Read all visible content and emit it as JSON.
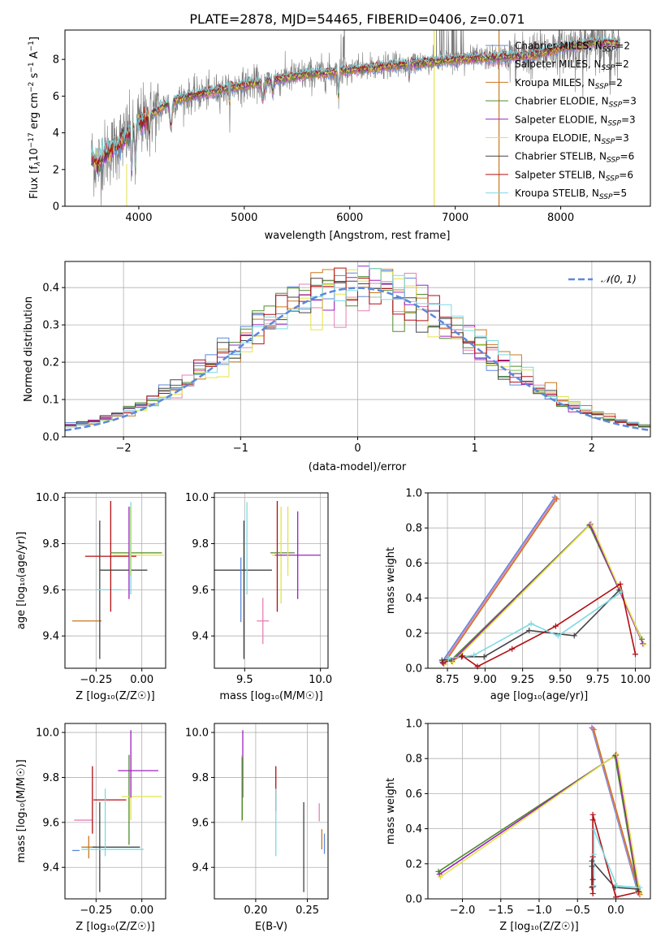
{
  "colors": {
    "Chabrier MILES": "#5b88db",
    "Salpeter MILES": "#e57fb6",
    "Kroupa MILES": "#c9771f",
    "Chabrier ELODIE": "#4e8c2a",
    "Salpeter ELODIE": "#9b22c2",
    "Kroupa ELODIE": "#e3e349",
    "Chabrier STELIB": "#444444",
    "Salpeter STELIB": "#b30d12",
    "Kroupa STELIB": "#7dd9e1",
    "spectrum": "#7a7a7a",
    "gaussian": "#5b88db",
    "grid": "#b0b0b0"
  },
  "chart_data": [
    {
      "id": "spectrum",
      "type": "line",
      "title": "PLATE=2878, MJD=54465, FIBERID=0406, z=0.071",
      "xlabel": "wavelength [Angstrom, rest frame]",
      "ylabel_parts": [
        "Flux [f",
        "λ",
        "10",
        "−17",
        " erg cm",
        "−2",
        " s",
        "−1",
        " A",
        "−1",
        "]"
      ],
      "xlim": [
        3300,
        8850
      ],
      "ylim": [
        0,
        9.6
      ],
      "xticks": [
        4000,
        5000,
        6000,
        7000,
        8000
      ],
      "yticks": [
        0,
        2,
        4,
        6,
        8
      ],
      "continuum": {
        "x": [
          3550,
          3600,
          3650,
          3700,
          3800,
          3900,
          4000,
          4100,
          4200,
          4300,
          4500,
          5000,
          5500,
          6000,
          6500,
          7000,
          7400,
          7700,
          8000,
          8300,
          8500
        ],
        "y": [
          2.7,
          2.3,
          2.6,
          2.9,
          3.4,
          3.9,
          4.5,
          4.9,
          5.3,
          5.7,
          6.0,
          6.6,
          7.1,
          7.4,
          7.7,
          8.0,
          8.1,
          8.2,
          8.6,
          8.9,
          8.9
        ]
      },
      "legend": [
        {
          "name": "Chabrier MILES",
          "nssp": "2"
        },
        {
          "name": "Salpeter MILES",
          "nssp": "2"
        },
        {
          "name": "Kroupa MILES",
          "nssp": "2"
        },
        {
          "name": "Chabrier ELODIE",
          "nssp": "3"
        },
        {
          "name": "Salpeter ELODIE",
          "nssp": "3"
        },
        {
          "name": "Kroupa ELODIE",
          "nssp": "3"
        },
        {
          "name": "Chabrier STELIB",
          "nssp": "6"
        },
        {
          "name": "Salpeter STELIB",
          "nssp": "6"
        },
        {
          "name": "Kroupa STELIB",
          "nssp": "5"
        }
      ],
      "nssp_label": "N",
      "nssp_sub": "SSP"
    },
    {
      "id": "residuals",
      "type": "histogram",
      "xlabel": "(data-model)/error",
      "ylabel": "Normed distribution",
      "xlim": [
        -2.5,
        2.5
      ],
      "ylim": [
        0,
        0.47
      ],
      "xticks": [
        -2,
        -1,
        0,
        1,
        2
      ],
      "yticks": [
        0.0,
        0.1,
        0.2,
        0.3,
        0.4
      ],
      "bin_width": 0.1,
      "legend": "𝒩(0, 1)"
    },
    {
      "id": "age-vs-Z",
      "type": "errorbar",
      "xlabel": "Z [log₁₀(Z/Z☉)]",
      "ylabel": "age  [log₁₀(age/yr)]",
      "xlim": [
        -0.42,
        0.13
      ],
      "ylim": [
        9.26,
        10.02
      ],
      "xticks": [
        -0.25,
        0.0
      ],
      "xticklabels": [
        "−0.25",
        "0.00"
      ],
      "yticks": [
        9.4,
        9.6,
        9.8,
        10.0
      ],
      "points": [
        {
          "series": "Kroupa MILES",
          "x": -0.3,
          "xerr": 0.08,
          "y": 9.465,
          "yerr": 0.0
        },
        {
          "series": "Salpeter MILES",
          "x": -0.27,
          "xerr": 0.0,
          "y": 9.465,
          "yerr": 0.0
        },
        {
          "series": "Chabrier STELIB",
          "x": -0.23,
          "xerr": 0.0,
          "y": 9.6,
          "yerr": 0.3
        },
        {
          "series": "Kroupa STELIB",
          "x": -0.18,
          "xerr": 0.07,
          "y": 9.6,
          "yerr": 0.0
        },
        {
          "series": "Salpeter STELIB",
          "x": -0.17,
          "xerr": 0.14,
          "y": 9.745,
          "yerr": 0.24
        },
        {
          "series": "Chabrier STELIB",
          "x": -0.1,
          "xerr": 0.13,
          "y": 9.685,
          "yerr": 0.0
        },
        {
          "series": "Chabrier ELODIE",
          "x": -0.03,
          "xerr": 0.14,
          "y": 9.76,
          "yerr": 0.0
        },
        {
          "series": "Kroupa ELODIE",
          "x": -0.02,
          "xerr": 0.14,
          "y": 9.75,
          "yerr": 0.0
        },
        {
          "series": "Salpeter ELODIE",
          "x": -0.07,
          "xerr": 0.0,
          "y": 9.76,
          "yerr": 0.2
        },
        {
          "series": "Kroupa STELIB",
          "x": -0.06,
          "xerr": 0.0,
          "y": 9.78,
          "yerr": 0.2
        },
        {
          "series": "Kroupa ELODIE",
          "x": -0.065,
          "xerr": 0.0,
          "y": 9.81,
          "yerr": 0.15
        }
      ]
    },
    {
      "id": "age-vs-mass",
      "type": "errorbar",
      "xlabel": "mass [log₁₀(M/M☉)]",
      "ylabel": "",
      "xlim": [
        9.3,
        10.05
      ],
      "ylim": [
        9.26,
        10.02
      ],
      "xticks": [
        9.5,
        10.0
      ],
      "xticklabels": [
        "9.5",
        "10.0"
      ],
      "yticks": [
        9.4,
        9.6,
        9.8,
        10.0
      ],
      "points": [
        {
          "series": "Chabrier STELIB",
          "x": 9.49,
          "xerr": 0.19,
          "y": 9.685,
          "yerr": 0.0
        },
        {
          "series": "Chabrier STELIB",
          "x": 9.495,
          "xerr": 0.0,
          "y": 9.6,
          "yerr": 0.3
        },
        {
          "series": "Chabrier MILES",
          "x": 9.475,
          "xerr": 0.0,
          "y": 9.6,
          "yerr": 0.14
        },
        {
          "series": "Kroupa STELIB",
          "x": 9.515,
          "xerr": 0.0,
          "y": 9.78,
          "yerr": 0.2
        },
        {
          "series": "Kroupa MILES",
          "x": 9.55,
          "xerr": 0.0,
          "y": 9.465,
          "yerr": 0.0
        },
        {
          "series": "Salpeter MILES",
          "x": 9.62,
          "xerr": 0.04,
          "y": 9.465,
          "yerr": 0.1
        },
        {
          "series": "Kroupa STELIB",
          "x": 9.66,
          "xerr": 0.0,
          "y": 9.6,
          "yerr": 0.0
        },
        {
          "series": "Salpeter STELIB",
          "x": 9.715,
          "xerr": 0.0,
          "y": 9.745,
          "yerr": 0.24
        },
        {
          "series": "Chabrier ELODIE",
          "x": 9.75,
          "xerr": 0.08,
          "y": 9.76,
          "yerr": 0.0
        },
        {
          "series": "Kroupa ELODIE",
          "x": 9.74,
          "xerr": 0.06,
          "y": 9.75,
          "yerr": 0.21
        },
        {
          "series": "Salpeter ELODIE",
          "x": 9.85,
          "xerr": 0.15,
          "y": 9.75,
          "yerr": 0.19
        },
        {
          "series": "Kroupa ELODIE",
          "x": 9.785,
          "xerr": 0.0,
          "y": 9.81,
          "yerr": 0.15
        }
      ]
    },
    {
      "id": "mass-vs-Z",
      "type": "errorbar",
      "xlabel": "Z [log₁₀(Z/Z☉)]",
      "ylabel": "mass [log₁₀(M/M☉)]",
      "xlim": [
        -0.42,
        0.13
      ],
      "ylim": [
        9.26,
        10.04
      ],
      "xticks": [
        -0.25,
        0.0
      ],
      "xticklabels": [
        "−0.25",
        "0.00"
      ],
      "yticks": [
        9.4,
        9.6,
        9.8,
        10.0
      ],
      "points": [
        {
          "series": "Chabrier MILES",
          "x": -0.36,
          "xerr": 0.02,
          "y": 9.475,
          "yerr": 0.0
        },
        {
          "series": "Kroupa MILES",
          "x": -0.29,
          "xerr": 0.04,
          "y": 9.49,
          "yerr": 0.05
        },
        {
          "series": "Salpeter MILES",
          "x": -0.32,
          "xerr": 0.05,
          "y": 9.61,
          "yerr": 0.0
        },
        {
          "series": "Salpeter STELIB",
          "x": -0.27,
          "xerr": 0.0,
          "y": 9.7,
          "yerr": 0.15
        },
        {
          "series": "Salpeter STELIB",
          "x": -0.175,
          "xerr": 0.09,
          "y": 9.7,
          "yerr": 0.0
        },
        {
          "series": "Chabrier STELIB",
          "x": -0.23,
          "xerr": 0.0,
          "y": 9.49,
          "yerr": 0.2
        },
        {
          "series": "Chabrier STELIB",
          "x": -0.14,
          "xerr": 0.13,
          "y": 9.49,
          "yerr": 0.0
        },
        {
          "series": "Kroupa STELIB",
          "x": -0.16,
          "xerr": 0.17,
          "y": 9.48,
          "yerr": 0.0
        },
        {
          "series": "Kroupa STELIB",
          "x": -0.2,
          "xerr": 0.0,
          "y": 9.6,
          "yerr": 0.15
        },
        {
          "series": "Chabrier ELODIE",
          "x": -0.07,
          "xerr": 0.0,
          "y": 9.7,
          "yerr": 0.2
        },
        {
          "series": "Kroupa ELODIE",
          "x": 0.0,
          "xerr": 0.11,
          "y": 9.715,
          "yerr": 0.0
        },
        {
          "series": "Kroupa ELODIE",
          "x": -0.06,
          "xerr": 0.0,
          "y": 9.76,
          "yerr": 0.15
        },
        {
          "series": "Salpeter ELODIE",
          "x": -0.02,
          "xerr": 0.11,
          "y": 9.83,
          "yerr": 0.0
        },
        {
          "series": "Salpeter ELODIE",
          "x": -0.06,
          "xerr": 0.0,
          "y": 9.86,
          "yerr": 0.15
        }
      ]
    },
    {
      "id": "mass-vs-EBV",
      "type": "errorbar",
      "xlabel": "E(B-V)",
      "ylabel": "",
      "xlim": [
        0.16,
        0.27
      ],
      "ylim": [
        9.26,
        10.04
      ],
      "xticks": [
        0.2,
        0.25
      ],
      "xticklabels": [
        "0.20",
        "0.25"
      ],
      "yticks": [
        9.4,
        9.6,
        9.8,
        10.0
      ],
      "points": [
        {
          "series": "Salpeter ELODIE",
          "x": 0.1875,
          "xerr": 0.0,
          "y": 9.86,
          "yerr": 0.15
        },
        {
          "series": "Kroupa ELODIE",
          "x": 0.1865,
          "xerr": 0.0,
          "y": 9.75,
          "yerr": 0.15
        },
        {
          "series": "Chabrier ELODIE",
          "x": 0.187,
          "xerr": 0.0,
          "y": 9.75,
          "yerr": 0.14
        },
        {
          "series": "Salpeter STELIB",
          "x": 0.2195,
          "xerr": 0.0,
          "y": 9.75,
          "yerr": 0.1
        },
        {
          "series": "Kroupa STELIB",
          "x": 0.2195,
          "xerr": 0.0,
          "y": 9.6,
          "yerr": 0.15
        },
        {
          "series": "Chabrier STELIB",
          "x": 0.2465,
          "xerr": 0.0,
          "y": 9.49,
          "yerr": 0.2
        },
        {
          "series": "Salpeter MILES",
          "x": 0.2615,
          "xerr": 0.0,
          "y": 9.645,
          "yerr": 0.04
        },
        {
          "series": "Kroupa MILES",
          "x": 0.264,
          "xerr": 0.0,
          "y": 9.525,
          "yerr": 0.045
        },
        {
          "series": "Chabrier MILES",
          "x": 0.2665,
          "xerr": 0.0,
          "y": 9.505,
          "yerr": 0.045
        }
      ]
    },
    {
      "id": "weight-vs-age",
      "type": "line",
      "xlabel": "age  [log₁₀(age/yr)]",
      "ylabel": "mass weight",
      "xlim": [
        8.62,
        10.1
      ],
      "ylim": [
        0,
        1.0
      ],
      "xticks": [
        8.75,
        9.0,
        9.25,
        9.5,
        9.75,
        10.0
      ],
      "xticklabels": [
        "8.75",
        "9.00",
        "9.25",
        "9.50",
        "9.75",
        "10.00"
      ],
      "yticks": [
        0.0,
        0.2,
        0.4,
        0.6,
        0.8,
        1.0
      ],
      "series": [
        {
          "name": "Chabrier MILES",
          "x": [
            8.72,
            9.47
          ],
          "y": [
            0.03,
            0.97
          ]
        },
        {
          "name": "Salpeter MILES",
          "x": [
            8.72,
            9.47
          ],
          "y": [
            0.03,
            0.97
          ]
        },
        {
          "name": "Kroupa MILES",
          "x": [
            8.72,
            9.47
          ],
          "y": [
            0.03,
            0.97
          ]
        },
        {
          "name": "Chabrier ELODIE",
          "x": [
            8.78,
            9.7,
            10.05
          ],
          "y": [
            0.04,
            0.81,
            0.16
          ]
        },
        {
          "name": "Salpeter ELODIE",
          "x": [
            8.78,
            9.7,
            10.05
          ],
          "y": [
            0.04,
            0.82,
            0.14
          ]
        },
        {
          "name": "Kroupa ELODIE",
          "x": [
            8.78,
            9.7,
            10.05
          ],
          "y": [
            0.04,
            0.83,
            0.14
          ]
        },
        {
          "name": "Chabrier STELIB",
          "x": [
            8.72,
            8.85,
            9.0,
            9.3,
            9.6,
            9.9
          ],
          "y": [
            0.04,
            0.06,
            0.06,
            0.21,
            0.18,
            0.44
          ]
        },
        {
          "name": "Salpeter STELIB",
          "x": [
            8.72,
            8.85,
            8.95,
            9.18,
            9.47,
            9.9,
            10.0
          ],
          "y": [
            0.03,
            0.07,
            0.01,
            0.11,
            0.24,
            0.48,
            0.08
          ]
        },
        {
          "name": "Kroupa STELIB",
          "x": [
            8.75,
            8.92,
            9.3,
            9.48,
            9.9
          ],
          "y": [
            0.06,
            0.08,
            0.26,
            0.19,
            0.44
          ]
        }
      ]
    },
    {
      "id": "weight-vs-Z",
      "type": "line",
      "xlabel": "Z [log₁₀(Z/Z☉)]",
      "ylabel": "mass weight",
      "xlim": [
        -2.45,
        0.45
      ],
      "ylim": [
        0,
        1.0
      ],
      "xticks": [
        -2.0,
        -1.5,
        -1.0,
        -0.5,
        0.0
      ],
      "xticklabels": [
        "−2.0",
        "−1.5",
        "−1.0",
        "−0.5",
        "0.0"
      ],
      "yticks": [
        0.0,
        0.2,
        0.4,
        0.6,
        0.8,
        1.0
      ],
      "series": [
        {
          "name": "Chabrier MILES",
          "x": [
            -0.3,
            0.3
          ],
          "y": [
            0.97,
            0.03
          ]
        },
        {
          "name": "Salpeter MILES",
          "x": [
            -0.3,
            0.3
          ],
          "y": [
            0.97,
            0.03
          ]
        },
        {
          "name": "Kroupa MILES",
          "x": [
            -0.3,
            0.3
          ],
          "y": [
            0.97,
            0.03
          ]
        },
        {
          "name": "Chabrier ELODIE",
          "x": [
            -2.3,
            0.0,
            0.3
          ],
          "y": [
            0.15,
            0.81,
            0.04
          ]
        },
        {
          "name": "Salpeter ELODIE",
          "x": [
            -2.3,
            0.0,
            0.3
          ],
          "y": [
            0.14,
            0.82,
            0.04
          ]
        },
        {
          "name": "Kroupa ELODIE",
          "x": [
            -2.3,
            0.0,
            0.3
          ],
          "y": [
            0.13,
            0.83,
            0.04
          ]
        },
        {
          "name": "Chabrier STELIB",
          "x": [
            -0.3,
            -0.3,
            -0.3,
            0.0,
            0.3
          ],
          "y": [
            0.06,
            0.18,
            0.21,
            0.06,
            0.05
          ]
        },
        {
          "name": "Salpeter STELIB",
          "x": [
            -0.3,
            -0.3,
            -0.3,
            -0.3,
            -0.3,
            -0.3,
            0.0,
            0.3
          ],
          "y": [
            0.03,
            0.07,
            0.11,
            0.24,
            0.45,
            0.48,
            0.01,
            0.04
          ]
        },
        {
          "name": "Kroupa STELIB",
          "x": [
            -0.3,
            -0.3,
            -0.3,
            0.0,
            0.3
          ],
          "y": [
            0.08,
            0.26,
            0.4,
            0.08,
            0.07
          ]
        }
      ]
    }
  ]
}
